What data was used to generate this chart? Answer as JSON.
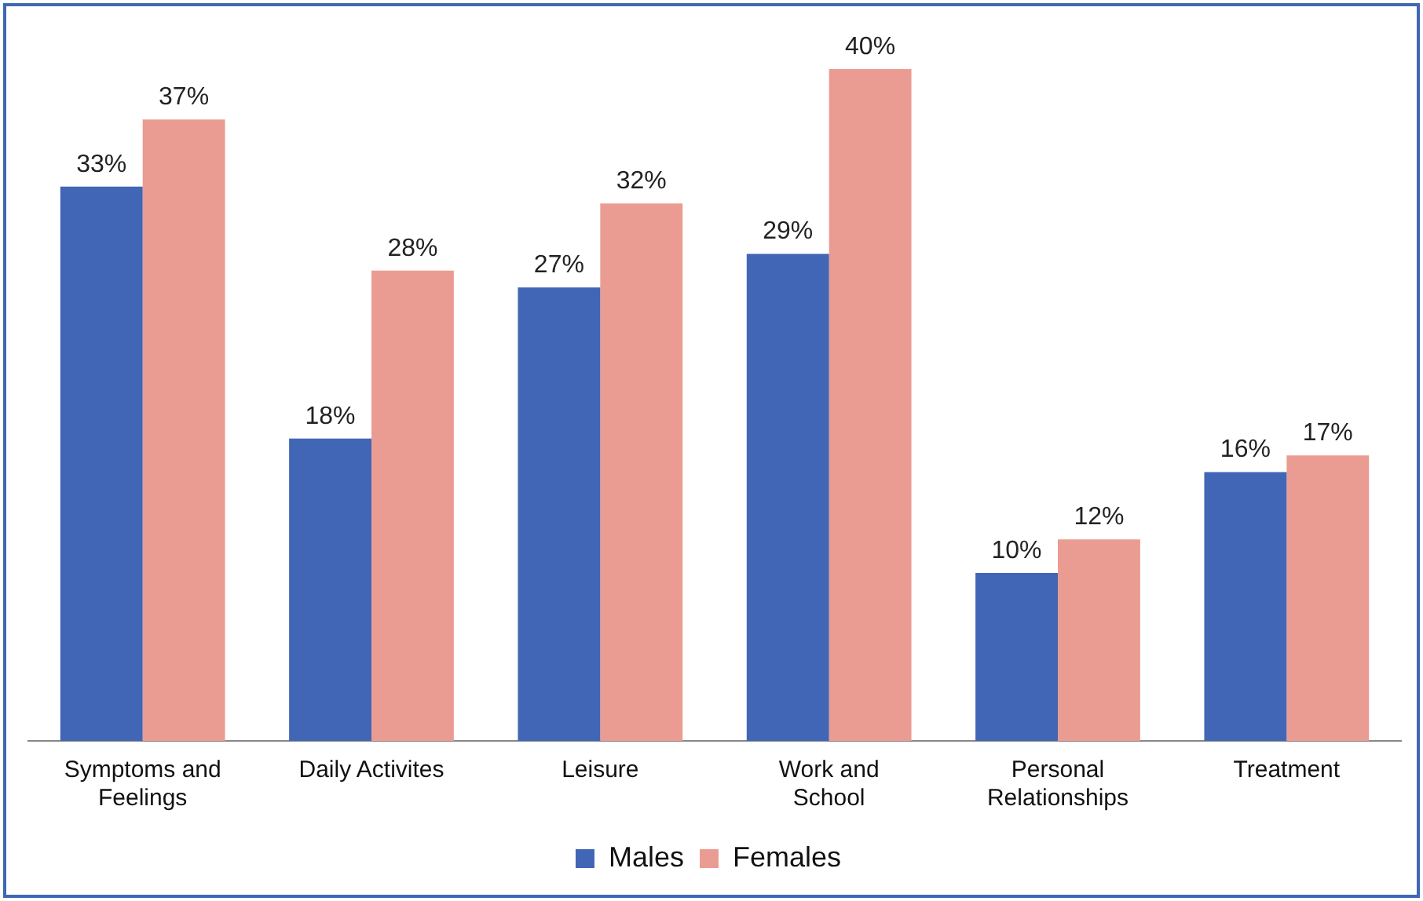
{
  "chart_data": {
    "type": "bar",
    "categories": [
      "Symptoms and Feelings",
      "Daily Activites",
      "Leisure",
      "Work and School",
      "Personal Relationships",
      "Treatment"
    ],
    "series": [
      {
        "name": "Males",
        "color": "#4166b5",
        "values": [
          33,
          18,
          27,
          29,
          10,
          16
        ],
        "value_labels": [
          "33%",
          "18%",
          "27%",
          "29%",
          "10%",
          "16%"
        ]
      },
      {
        "name": "Females",
        "color": "#eb9c92",
        "values": [
          37,
          28,
          32,
          40,
          12,
          17
        ],
        "value_labels": [
          "37%",
          "28%",
          "32%",
          "40%",
          "12%",
          "17%"
        ]
      }
    ],
    "tick_labels": "x",
    "grid": false,
    "legend": "bottom"
  }
}
